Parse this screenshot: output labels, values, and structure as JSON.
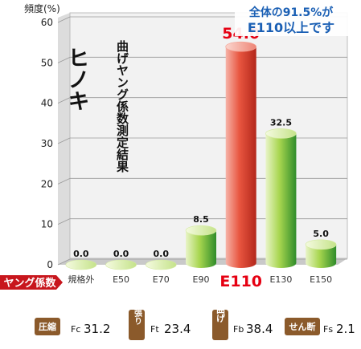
{
  "chart_data": {
    "type": "bar",
    "title": "ヒノキ",
    "subtitle": "曲げヤング係数測定結果",
    "ylabel": "頻度(%)",
    "xlabel": "ヤング係数",
    "ylim": [
      0,
      60
    ],
    "yticks": [
      0,
      10,
      20,
      30,
      40,
      50,
      60
    ],
    "grid": true,
    "categories": [
      "規格外",
      "E50",
      "E70",
      "E90",
      "E110",
      "E130",
      "E150"
    ],
    "values": [
      0.0,
      0.0,
      0.0,
      8.5,
      54.0,
      32.5,
      5.0
    ],
    "value_labels": [
      "0.0",
      "0.0",
      "0.0",
      "8.5",
      "54.0",
      "32.5",
      "5.0"
    ],
    "highlight_category": "E110",
    "annotation": [
      "全体の91.5%が",
      "E110以上です"
    ]
  },
  "properties": [
    {
      "name": "圧縮",
      "symbol": "Fc",
      "value": "31.2"
    },
    {
      "name": "引張り",
      "symbol": "Ft",
      "value": "23.4"
    },
    {
      "name": "曲げ",
      "symbol": "Fb",
      "value": "38.4"
    },
    {
      "name": "せん断",
      "symbol": "Fs",
      "value": "2.1"
    }
  ],
  "colors": {
    "highlight_bar": "#e64a3c",
    "green_bar": "#8cc63f",
    "accent_red": "#e60012",
    "note_blue": "#1a5fb4",
    "tag_red": "#c8161d",
    "badge_brown": "#8b5a2b"
  }
}
